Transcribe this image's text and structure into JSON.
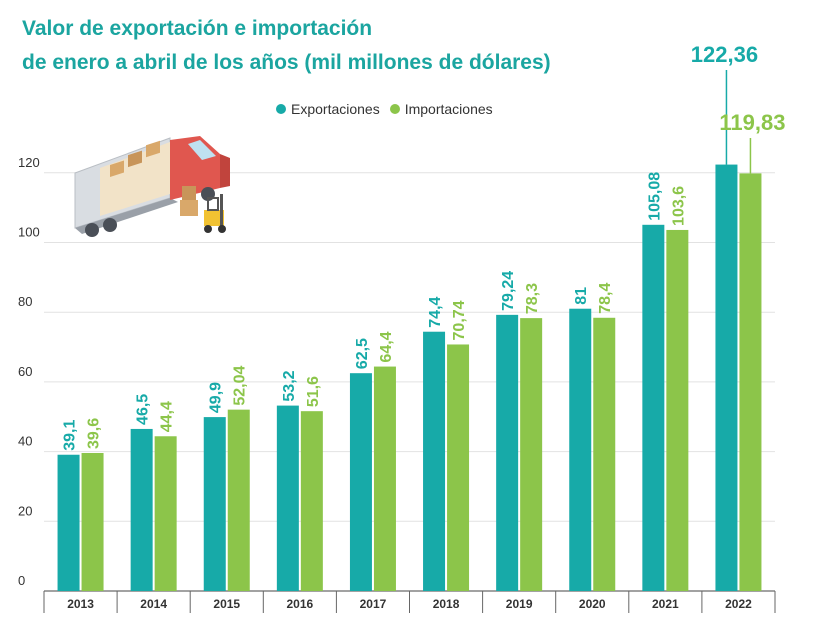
{
  "title_line1": "Valor de exportación e importación",
  "title_line2": "de enero a abril de los años (mil millones de dólares)",
  "legend": {
    "exports_label": "Exportaciones",
    "imports_label": "Importaciones"
  },
  "colors": {
    "exports": "#17aaa8",
    "imports": "#8cc54a",
    "title": "#1ba5a0",
    "grid": "#e2e2e2"
  },
  "chart_data": {
    "type": "bar",
    "title": "Valor de exportación e importación de enero a abril de los años (mil millones de dólares)",
    "categories": [
      "2013",
      "2014",
      "2015",
      "2016",
      "2017",
      "2018",
      "2019",
      "2020",
      "2021",
      "2022"
    ],
    "series": [
      {
        "name": "Exportaciones",
        "values": [
          39.1,
          46.5,
          49.9,
          53.2,
          62.5,
          74.4,
          79.24,
          81,
          105.08,
          122.36
        ],
        "labels": [
          "39,1",
          "46,5",
          "49,9",
          "53,2",
          "62,5",
          "74,4",
          "79,24",
          "81",
          "105,08",
          "122,36"
        ]
      },
      {
        "name": "Importaciones",
        "values": [
          39.6,
          44.4,
          52.04,
          51.6,
          64.4,
          70.74,
          78.3,
          78.4,
          103.6,
          119.83
        ],
        "labels": [
          "39,6",
          "44,4",
          "52,04",
          "51,6",
          "64,4",
          "70,74",
          "78,3",
          "78,4",
          "103,6",
          "119,83"
        ]
      }
    ],
    "yticks": [
      "0",
      "20",
      "40",
      "60",
      "80",
      "100",
      "120"
    ],
    "ylim": [
      0,
      130
    ],
    "grid": true,
    "legend_position": "top-center"
  }
}
